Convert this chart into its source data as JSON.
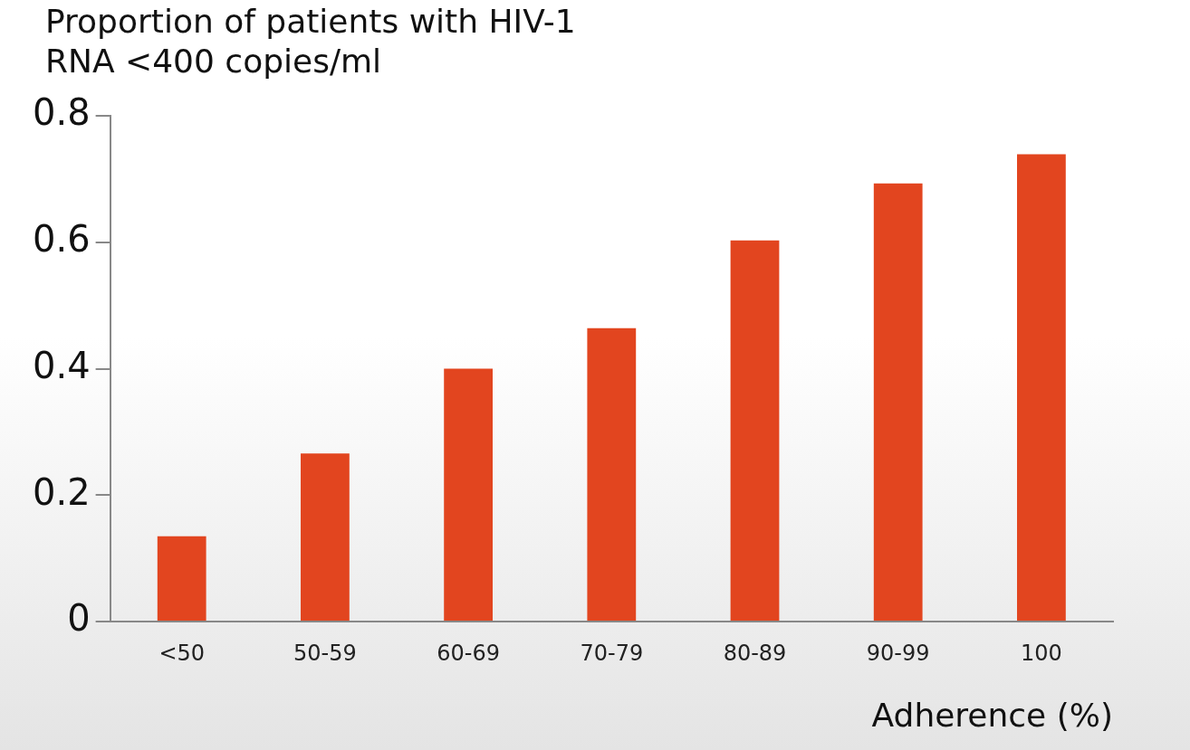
{
  "chart_data": {
    "type": "bar",
    "title": "Proportion of patients with HIV-1 RNA <400 copies/ml",
    "xlabel": "Adherence (%)",
    "categories": [
      "<50",
      "50-59",
      "60-69",
      "70-79",
      "80-89",
      "90-99",
      "100"
    ],
    "values": [
      0.135,
      0.266,
      0.4,
      0.464,
      0.603,
      0.693,
      0.739
    ],
    "color": "#e2451f",
    "ylim": [
      0,
      0.8
    ],
    "yticks": [
      {
        "value": 0,
        "label": "0"
      },
      0.2,
      0.4,
      0.6,
      0.8
    ],
    "grid": false,
    "legend": false
  }
}
